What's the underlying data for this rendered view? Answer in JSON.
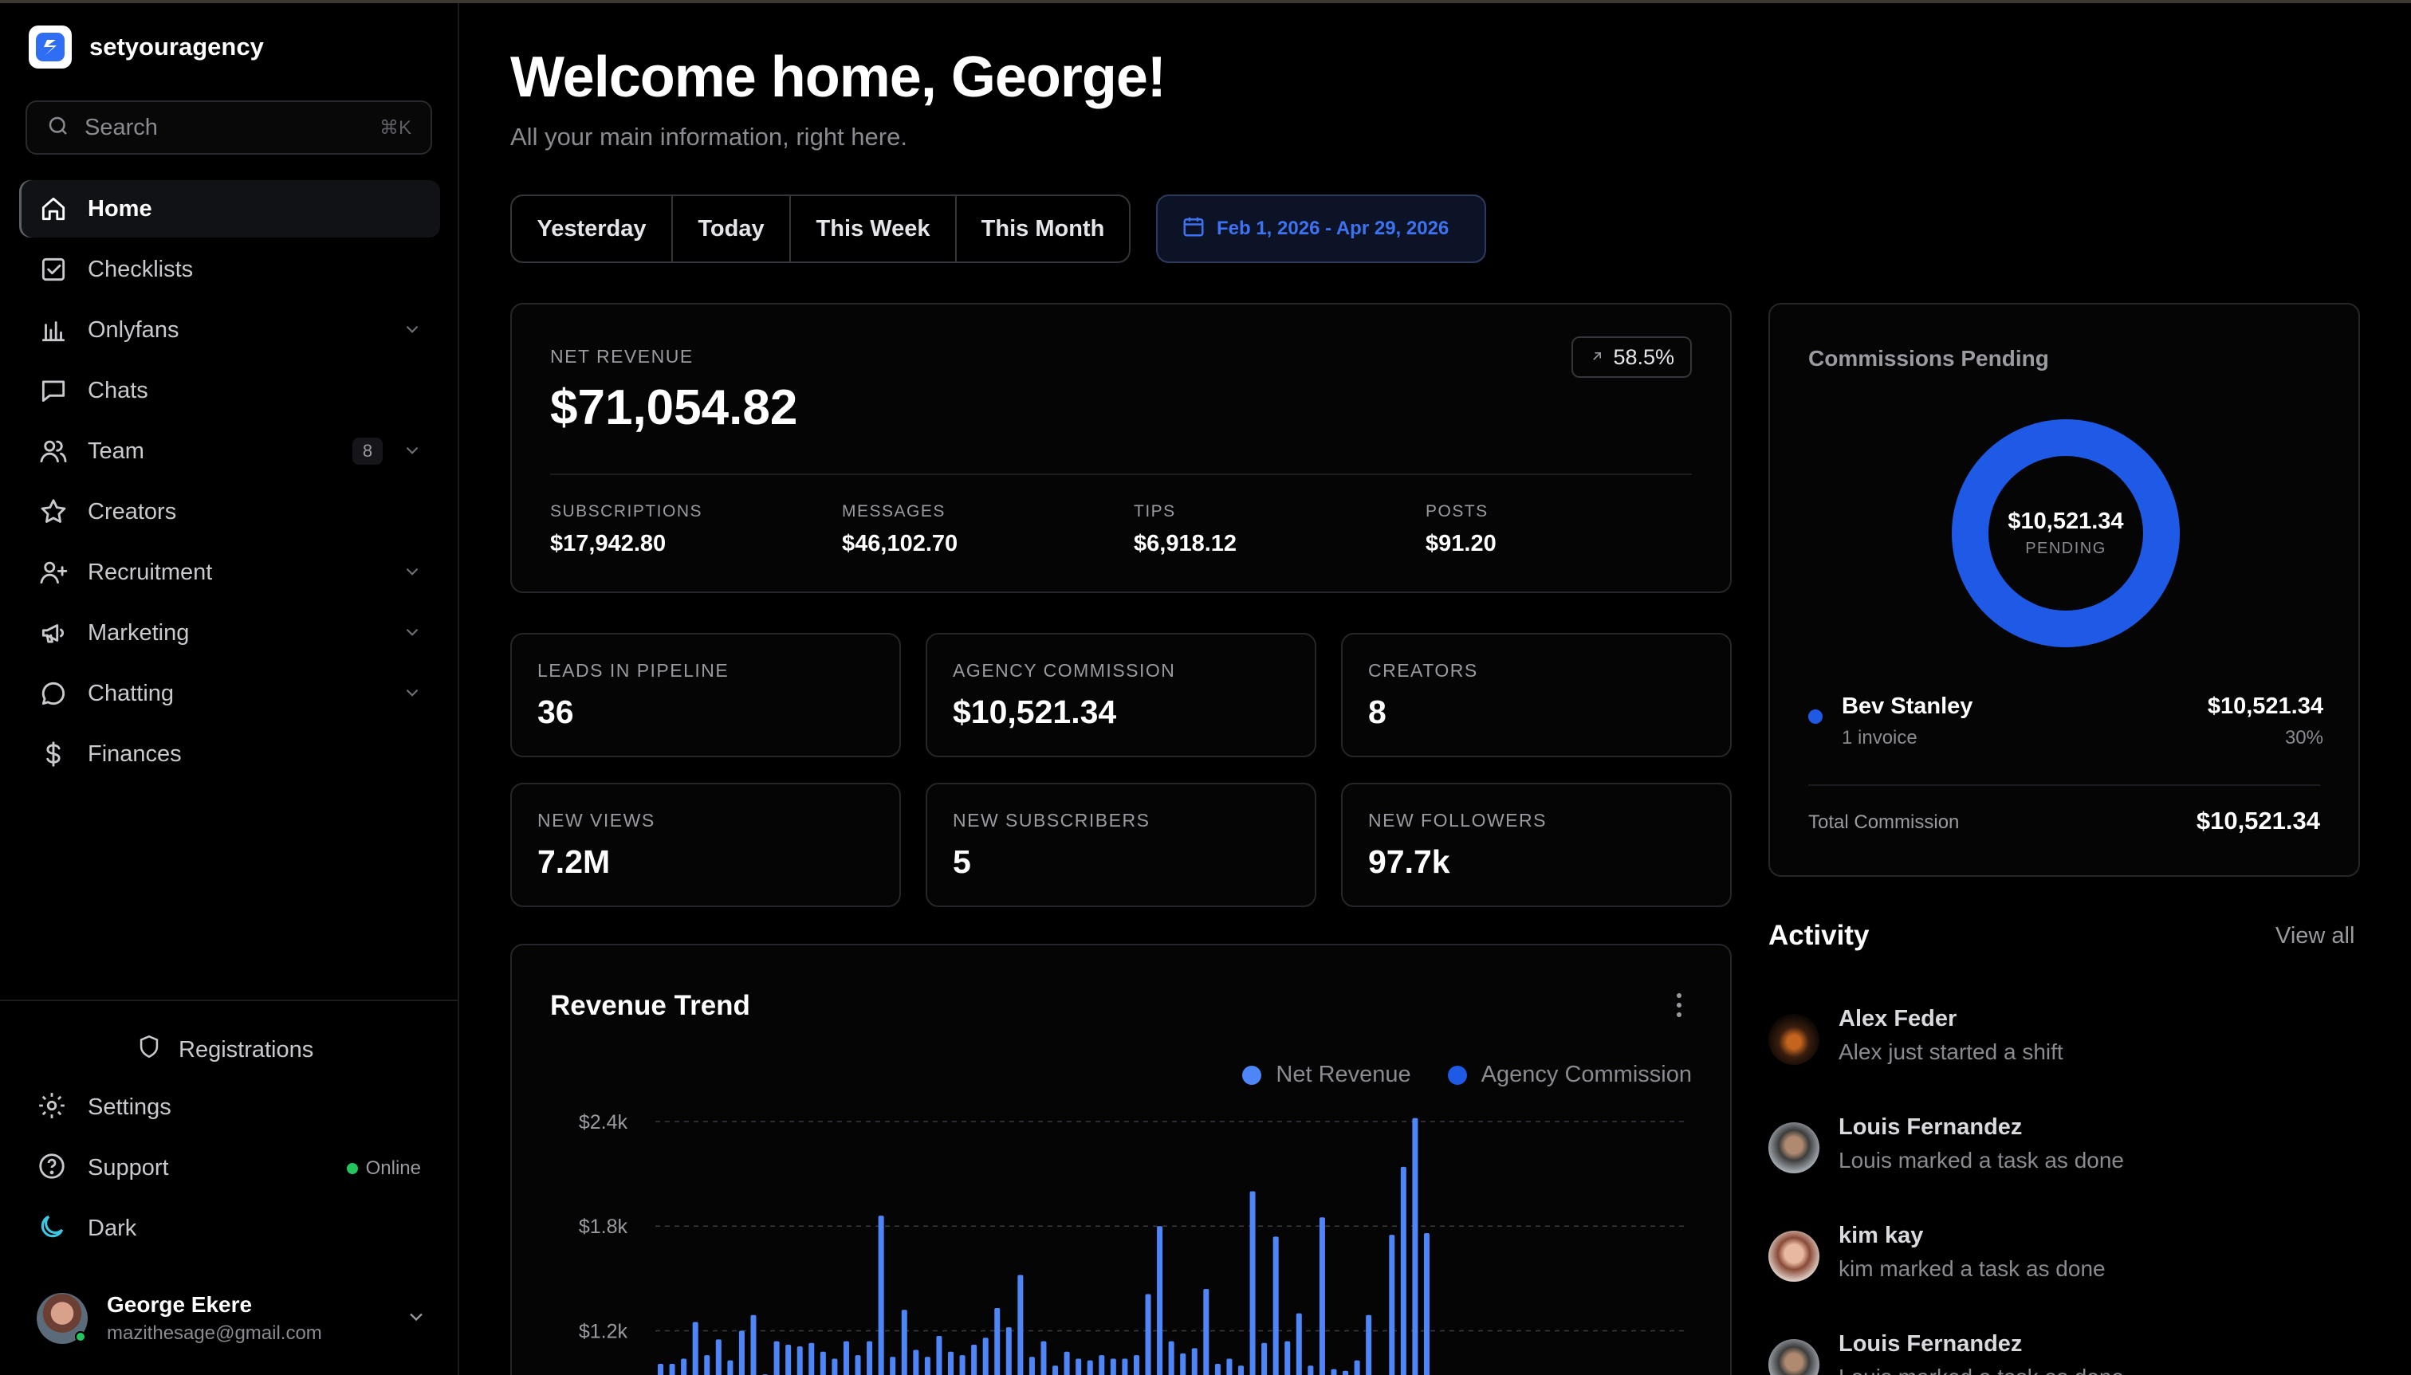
{
  "brand": {
    "name": "setyouragency"
  },
  "search": {
    "placeholder": "Search",
    "shortcut": "⌘K"
  },
  "nav": [
    {
      "label": "Home",
      "icon": "home-icon",
      "active": true
    },
    {
      "label": "Checklists",
      "icon": "checklist-icon"
    },
    {
      "label": "Onlyfans",
      "icon": "bar-chart-icon",
      "expandable": true
    },
    {
      "label": "Chats",
      "icon": "chat-square-icon"
    },
    {
      "label": "Team",
      "icon": "users-icon",
      "badge": "8",
      "expandable": true
    },
    {
      "label": "Creators",
      "icon": "star-icon"
    },
    {
      "label": "Recruitment",
      "icon": "user-plus-icon",
      "expandable": true
    },
    {
      "label": "Marketing",
      "icon": "megaphone-icon",
      "expandable": true
    },
    {
      "label": "Chatting",
      "icon": "chat-round-icon",
      "expandable": true
    },
    {
      "label": "Finances",
      "icon": "dollar-icon"
    }
  ],
  "bottom": {
    "registrations": "Registrations",
    "settings": "Settings",
    "support": "Support",
    "support_status": "Online",
    "theme": "Dark"
  },
  "user": {
    "name": "George Ekere",
    "email": "mazithesage@gmail.com"
  },
  "header": {
    "title": "Welcome home, George!",
    "subtitle": "All your main information, right here."
  },
  "filters": {
    "options": [
      "Yesterday",
      "Today",
      "This Week",
      "This Month"
    ],
    "date_range": "Feb 1, 2026 - Apr 29, 2026"
  },
  "net_revenue": {
    "label": "NET REVENUE",
    "value": "$71,054.82",
    "change": "58.5%",
    "breakdown": [
      {
        "label": "SUBSCRIPTIONS",
        "value": "$17,942.80"
      },
      {
        "label": "MESSAGES",
        "value": "$46,102.70"
      },
      {
        "label": "TIPS",
        "value": "$6,918.12"
      },
      {
        "label": "POSTS",
        "value": "$91.20"
      }
    ]
  },
  "kpis": [
    {
      "label": "LEADS IN PIPELINE",
      "value": "36"
    },
    {
      "label": "AGENCY COMMISSION",
      "value": "$10,521.34"
    },
    {
      "label": "CREATORS",
      "value": "8"
    },
    {
      "label": "NEW VIEWS",
      "value": "7.2M"
    },
    {
      "label": "NEW SUBSCRIBERS",
      "value": "5"
    },
    {
      "label": "NEW FOLLOWERS",
      "value": "97.7k"
    }
  ],
  "commissions": {
    "title": "Commissions Pending",
    "center_value": "$10,521.34",
    "center_label": "PENDING",
    "row": {
      "name": "Bev Stanley",
      "invoices": "1 invoice",
      "amount": "$10,521.34",
      "percent": "30%"
    },
    "total_label": "Total Commission",
    "total_value": "$10,521.34",
    "ring_color": "#1f5ae6"
  },
  "activity": {
    "title": "Activity",
    "view_all": "View all",
    "items": [
      {
        "name": "Alex Feder",
        "desc": "Alex just started a shift"
      },
      {
        "name": "Louis Fernandez",
        "desc": "Louis marked a task as done"
      },
      {
        "name": "kim kay",
        "desc": "kim marked a task as done"
      },
      {
        "name": "Louis Fernandez",
        "desc": "Louis marked a task as done"
      }
    ]
  },
  "revenue_trend": {
    "title": "Revenue Trend"
  },
  "chart_data": {
    "type": "bar",
    "legend": [
      {
        "name": "Net Revenue",
        "color": "#4f86f7"
      },
      {
        "name": "Agency Commission",
        "color": "#1f5ae6"
      }
    ],
    "yticks": [
      "$2.4k",
      "$1.8k",
      "$1.2k"
    ],
    "ytick_values": [
      2400,
      1800,
      1200
    ],
    "ylim_visible": [
      850,
      2450
    ],
    "series": [
      {
        "name": "Net Revenue",
        "color": "#4f86f7",
        "values": [
          1010,
          1010,
          1040,
          1250,
          1060,
          1150,
          1030,
          1200,
          1290,
          950,
          1140,
          1120,
          1110,
          1130,
          1080,
          1040,
          1140,
          1060,
          1140,
          1860,
          1050,
          1320,
          1090,
          1050,
          1170,
          1080,
          1060,
          1120,
          1160,
          1330,
          1220,
          1520,
          1050,
          1140,
          1000,
          1080,
          1040,
          1030,
          1060,
          1040,
          1040,
          1060,
          1410,
          1800,
          1140,
          1070,
          1100,
          1440,
          1010,
          1040,
          1000,
          2000,
          1130,
          1740,
          1140,
          1300,
          1000,
          1850,
          980,
          970,
          1030,
          1290,
          890,
          1750,
          2140,
          2420,
          1760
        ]
      }
    ]
  }
}
